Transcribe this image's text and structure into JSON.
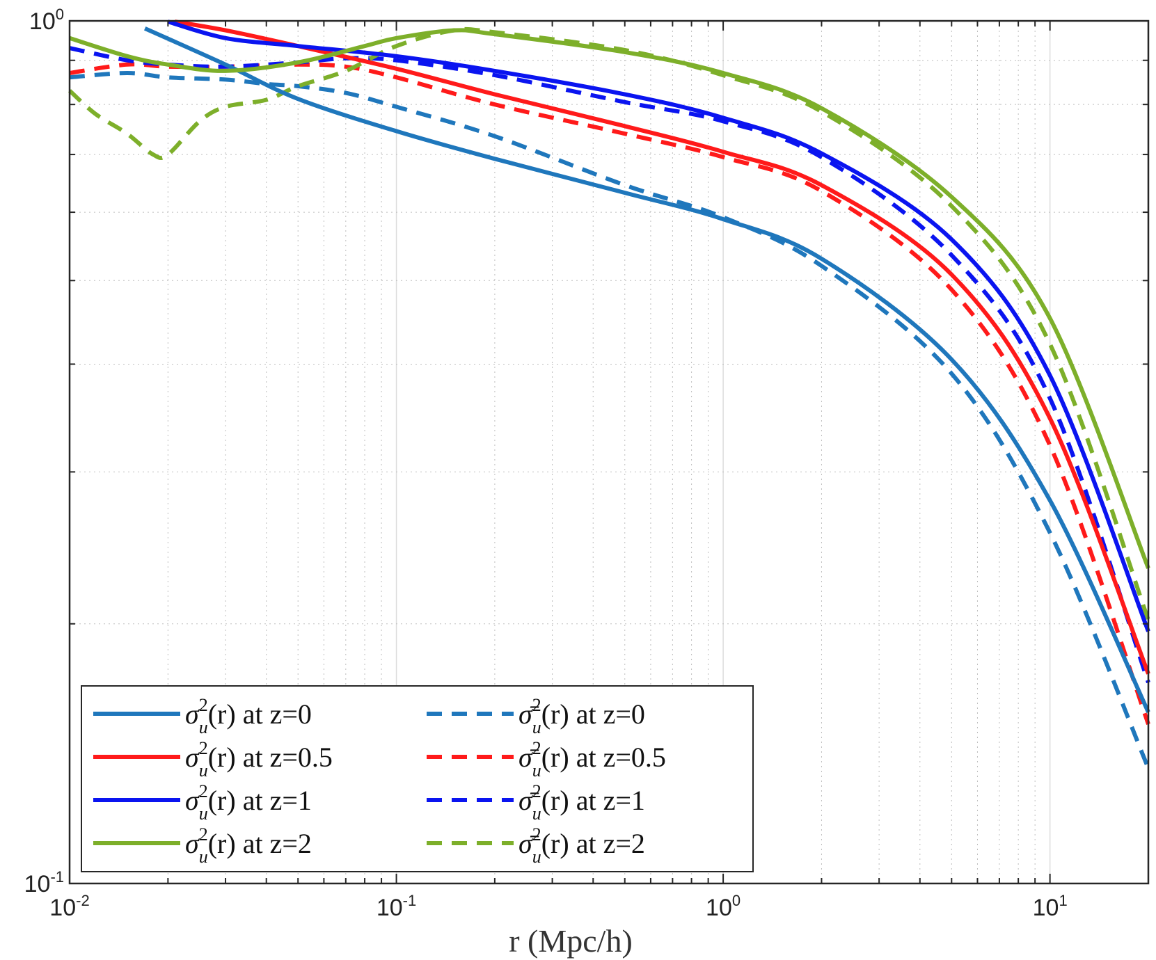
{
  "chart_data": {
    "type": "line",
    "title": "",
    "xlabel": "r (Mpc/h)",
    "ylabel": "",
    "xscale": "log",
    "yscale": "log",
    "xlim": [
      0.01,
      20
    ],
    "ylim": [
      0.1,
      1
    ],
    "grid": true,
    "x_ticks": [
      {
        "value": 0.01,
        "base": "10",
        "exp": "-2"
      },
      {
        "value": 0.1,
        "base": "10",
        "exp": "-1"
      },
      {
        "value": 1,
        "base": "10",
        "exp": "0"
      },
      {
        "value": 10,
        "base": "10",
        "exp": "1"
      }
    ],
    "y_ticks": [
      {
        "value": 0.1,
        "base": "10",
        "exp": "-1"
      },
      {
        "value": 1,
        "base": "10",
        "exp": "0"
      }
    ],
    "legend_position": "bottom-left",
    "legend_columns": 2,
    "series": [
      {
        "name": "σ²u(r) at z=0",
        "legend_math": "σ",
        "legend_tail": "(r) at z=0",
        "bar": false,
        "color": "#1f77bc",
        "style": "solid",
        "x": [
          0.017,
          0.03,
          0.05,
          0.1,
          0.2,
          0.5,
          1,
          2,
          5,
          10,
          20
        ],
        "y": [
          0.98,
          0.89,
          0.812,
          0.745,
          0.692,
          0.632,
          0.589,
          0.53,
          0.405,
          0.278,
          0.158
        ]
      },
      {
        "name": "σ²u(r) at z=0.5",
        "legend_math": "σ",
        "legend_tail": "(r) at z=0.5",
        "bar": false,
        "color": "#ff1a1a",
        "style": "solid",
        "x": [
          0.021,
          0.03,
          0.05,
          0.1,
          0.2,
          0.5,
          1,
          2,
          5,
          10,
          20
        ],
        "y": [
          0.998,
          0.975,
          0.935,
          0.88,
          0.822,
          0.755,
          0.705,
          0.645,
          0.508,
          0.346,
          0.175
        ]
      },
      {
        "name": "σ²u(r) at z=1",
        "legend_math": "σ",
        "legend_tail": "(r) at z=1",
        "bar": false,
        "color": "#0a14f0",
        "style": "solid",
        "x": [
          0.02,
          0.03,
          0.05,
          0.1,
          0.2,
          0.5,
          1,
          2,
          5,
          10,
          20
        ],
        "y": [
          0.998,
          0.955,
          0.935,
          0.91,
          0.875,
          0.822,
          0.772,
          0.702,
          0.558,
          0.388,
          0.196
        ]
      },
      {
        "name": "σ²u(r) at z=2",
        "legend_math": "σ",
        "legend_tail": "(r) at z=2",
        "bar": false,
        "color": "#7daf2a",
        "style": "solid",
        "x": [
          0.01,
          0.015,
          0.02,
          0.03,
          0.05,
          0.08,
          0.1,
          0.15,
          0.2,
          0.5,
          1,
          2,
          5,
          10,
          20
        ],
        "y": [
          0.955,
          0.91,
          0.89,
          0.875,
          0.895,
          0.935,
          0.955,
          0.975,
          0.965,
          0.92,
          0.87,
          0.792,
          0.625,
          0.452,
          0.232
        ]
      },
      {
        "name": "σ̄²u(r) at z=0",
        "legend_math": "σ̄",
        "legend_tail": "(r) at z=0",
        "bar": true,
        "color": "#1f77bc",
        "style": "dashed",
        "x": [
          0.01,
          0.015,
          0.02,
          0.03,
          0.04,
          0.05,
          0.07,
          0.1,
          0.2,
          0.5,
          1,
          2,
          5,
          10,
          20
        ],
        "y": [
          0.86,
          0.87,
          0.86,
          0.855,
          0.845,
          0.84,
          0.825,
          0.795,
          0.735,
          0.645,
          0.592,
          0.52,
          0.39,
          0.255,
          0.136
        ]
      },
      {
        "name": "σ̄²u(r) at z=0.5",
        "legend_math": "σ̄",
        "legend_tail": "(r) at z=0.5",
        "bar": true,
        "color": "#ff1a1a",
        "style": "dashed",
        "x": [
          0.01,
          0.015,
          0.02,
          0.03,
          0.05,
          0.07,
          0.1,
          0.2,
          0.5,
          1,
          2,
          5,
          10,
          20
        ],
        "y": [
          0.87,
          0.89,
          0.885,
          0.885,
          0.89,
          0.885,
          0.86,
          0.8,
          0.74,
          0.695,
          0.635,
          0.488,
          0.322,
          0.153
        ]
      },
      {
        "name": "σ̄²u(r) at z=1",
        "legend_math": "σ̄",
        "legend_tail": "(r) at z=1",
        "bar": true,
        "color": "#0a14f0",
        "style": "dashed",
        "x": [
          0.01,
          0.015,
          0.02,
          0.03,
          0.05,
          0.07,
          0.1,
          0.2,
          0.5,
          1,
          2,
          5,
          10,
          20
        ],
        "y": [
          0.93,
          0.9,
          0.89,
          0.885,
          0.895,
          0.905,
          0.9,
          0.865,
          0.805,
          0.765,
          0.695,
          0.535,
          0.365,
          0.171
        ]
      },
      {
        "name": "σ̄²u(r) at z=2",
        "legend_math": "σ̄",
        "legend_tail": "(r) at z=2",
        "bar": true,
        "color": "#7daf2a",
        "style": "dashed",
        "x": [
          0.01,
          0.012,
          0.015,
          0.018,
          0.02,
          0.025,
          0.03,
          0.04,
          0.05,
          0.07,
          0.1,
          0.15,
          0.2,
          0.5,
          1,
          2,
          5,
          10,
          20
        ],
        "y": [
          0.83,
          0.78,
          0.74,
          0.7,
          0.7,
          0.765,
          0.795,
          0.81,
          0.84,
          0.875,
          0.935,
          0.975,
          0.97,
          0.925,
          0.865,
          0.785,
          0.61,
          0.422,
          0.202
        ]
      }
    ]
  }
}
